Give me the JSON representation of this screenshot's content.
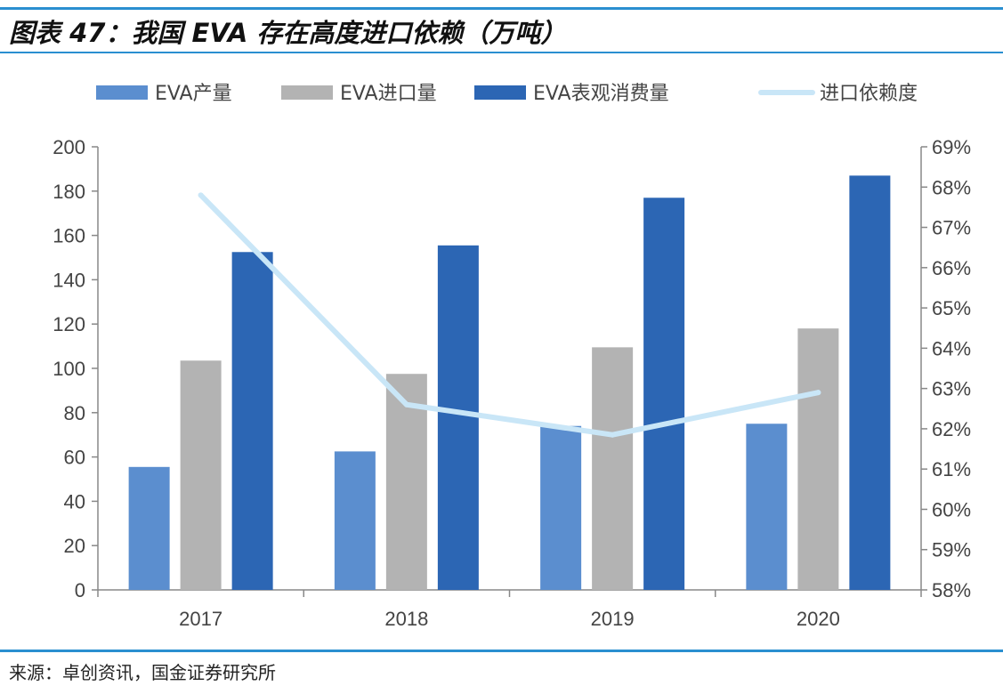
{
  "title": "图表 47：我国 EVA 存在高度进口依赖（万吨）",
  "source": "来源：卓创资讯，国金证券研究所",
  "chart_data": {
    "type": "bar",
    "categories": [
      "2017",
      "2018",
      "2019",
      "2020"
    ],
    "series": [
      {
        "name": "EVA产量",
        "type": "bar",
        "axis": "left",
        "color": "#5b8ecf",
        "values": [
          55.5,
          62.5,
          74,
          75
        ]
      },
      {
        "name": "EVA进口量",
        "type": "bar",
        "axis": "left",
        "color": "#b3b3b3",
        "values": [
          103.5,
          97.5,
          109.5,
          118
        ]
      },
      {
        "name": "EVA表观消费量",
        "type": "bar",
        "axis": "left",
        "color": "#2c66b4",
        "values": [
          152.5,
          155.5,
          177,
          187
        ]
      },
      {
        "name": "进口依赖度",
        "type": "line",
        "axis": "right",
        "color": "#c9e6f7",
        "values": [
          67.8,
          62.6,
          61.85,
          62.9
        ]
      }
    ],
    "y_left": {
      "min": 0,
      "max": 200,
      "ticks": [
        "0",
        "20",
        "40",
        "60",
        "80",
        "100",
        "120",
        "140",
        "160",
        "180",
        "200"
      ]
    },
    "y_right": {
      "min": 58,
      "max": 69,
      "ticks": [
        "58%",
        "59%",
        "60%",
        "61%",
        "62%",
        "63%",
        "64%",
        "65%",
        "66%",
        "67%",
        "68%",
        "69%"
      ]
    },
    "legend_position": "top",
    "grid": false
  }
}
